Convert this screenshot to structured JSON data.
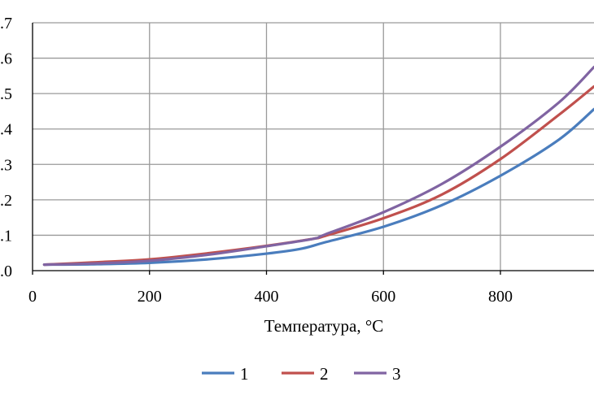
{
  "chart_data": {
    "type": "line",
    "title": "",
    "xlabel": "Температура, °C",
    "ylabel": "",
    "xlim": [
      0,
      960
    ],
    "ylim": [
      0.0,
      0.7
    ],
    "x_ticks": [
      0,
      200,
      400,
      600,
      800
    ],
    "x_tick_labels": [
      "0",
      "200",
      "400",
      "600",
      "800"
    ],
    "y_ticks": [
      0.0,
      0.1,
      0.2,
      0.3,
      0.4,
      0.5,
      0.6,
      0.7
    ],
    "y_tick_labels": [
      ".0",
      ".1",
      ".2",
      ".3",
      ".4",
      ".5",
      ".6",
      ".7"
    ],
    "grid": true,
    "legend_position": "bottom",
    "series": [
      {
        "name": "1",
        "color": "#4a7dbd",
        "x": [
          20,
          100,
          200,
          300,
          400,
          460,
          500,
          600,
          700,
          800,
          900,
          960
        ],
        "y": [
          0.017,
          0.018,
          0.022,
          0.032,
          0.048,
          0.062,
          0.08,
          0.124,
          0.185,
          0.268,
          0.37,
          0.456
        ]
      },
      {
        "name": "2",
        "color": "#c0504d",
        "x": [
          20,
          100,
          200,
          300,
          400,
          480,
          500,
          600,
          700,
          800,
          900,
          960
        ],
        "y": [
          0.017,
          0.023,
          0.032,
          0.049,
          0.07,
          0.09,
          0.098,
          0.148,
          0.215,
          0.315,
          0.44,
          0.52
        ]
      },
      {
        "name": "3",
        "color": "#8064a2",
        "x": [
          20,
          100,
          200,
          300,
          400,
          480,
          500,
          600,
          700,
          800,
          900,
          960
        ],
        "y": [
          0.017,
          0.02,
          0.028,
          0.045,
          0.069,
          0.09,
          0.102,
          0.165,
          0.245,
          0.35,
          0.475,
          0.575
        ]
      }
    ]
  }
}
